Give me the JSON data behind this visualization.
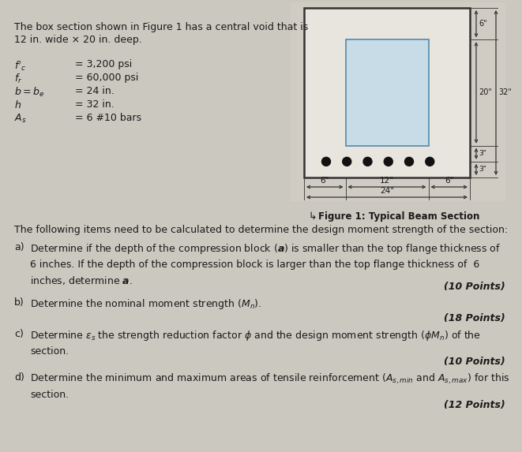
{
  "bg_color": "#cbc8c0",
  "page_color": "#dedad4",
  "text_color": "#1a1a1a",
  "void_color": "#c8dce8",
  "void_edge_color": "#5588aa",
  "outer_box_color": "#e0dcd4",
  "dim_line_color": "#333333",
  "figure_caption": "Figure 1: Typical Beam Section",
  "intro_text": "The following items need to be calculated to determine the design moment strength of the section:",
  "title_line1": "The box section shown in Figure 1 has a central void that is",
  "title_line2": "12 in. wide × 20 in. deep.",
  "param_rows": [
    {
      "sym": "$f'_c$",
      "val": "= 3,200 psi"
    },
    {
      "sym": "$f_r$",
      "val": "= 60,000 psi"
    },
    {
      "sym": "$b = b_e$",
      "val": "= 24 in."
    },
    {
      "sym": "$h$",
      "val": "= 32 in."
    },
    {
      "sym": "$A_s$",
      "val": "= 6 #10 bars"
    }
  ],
  "questions": [
    {
      "label": "a)",
      "body": "Determine if the depth of the compression block ($\\boldsymbol{a}$) is smaller than the top flange thickness of\n6 inches. If the depth of the compression block is larger than the top flange thickness of  6\ninches, determine $\\boldsymbol{a}$.",
      "points": "(10 Points)",
      "body_lines": 3
    },
    {
      "label": "b)",
      "body": "Determine the nominal moment strength ($M_n$).",
      "points": "(18 Points)",
      "body_lines": 1
    },
    {
      "label": "c)",
      "body": "Determine $\\varepsilon_s$ the strength reduction factor $\\phi$ and the design moment strength ($\\phi M_n$) of the\nsection.",
      "points": "(10 Points)",
      "body_lines": 2
    },
    {
      "label": "d)",
      "body": "Determine the minimum and maximum areas of tensile reinforcement ($A_{s,min}$ and $A_{s,max}$) for this\nsection.",
      "points": "(12 Points)",
      "body_lines": 2
    }
  ]
}
